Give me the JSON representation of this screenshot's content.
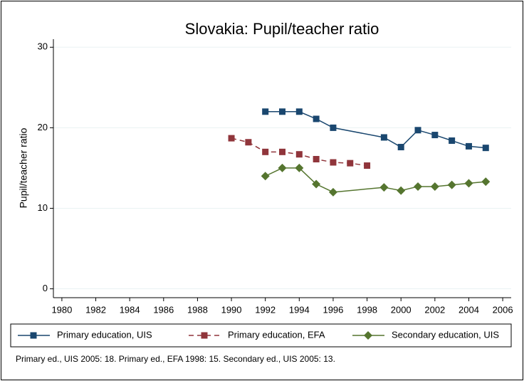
{
  "chart_data": {
    "type": "line",
    "title": "Slovakia: Pupil/teacher ratio",
    "y_label": "Pupil/teacher ratio",
    "note": "Primary ed., UIS 2005: 18. Primary ed., EFA 1998: 15. Secondary ed., UIS 2005: 13.",
    "xlim": [
      1979.5,
      2006.5
    ],
    "xticks": [
      1980,
      1982,
      1984,
      1986,
      1988,
      1990,
      1992,
      1994,
      1996,
      1998,
      2000,
      2002,
      2004,
      2006
    ],
    "ylim": [
      -1.1,
      31
    ],
    "yticks": [
      0,
      10,
      20,
      30
    ],
    "grid": true,
    "legend": "bottom",
    "series": [
      {
        "name": "Primary education, UIS",
        "color": "#1a476f",
        "marker": "square",
        "dash": false,
        "x": [
          1992,
          1993,
          1994,
          1995,
          1996,
          1999,
          2000,
          2001,
          2002,
          2003,
          2004,
          2005
        ],
        "values": [
          22,
          22,
          22,
          21.1,
          20,
          18.8,
          17.6,
          19.7,
          19.1,
          18.4,
          17.7,
          17.5
        ]
      },
      {
        "name": "Primary education, EFA",
        "color": "#90353b",
        "marker": "square",
        "dash": true,
        "x": [
          1990,
          1991,
          1992,
          1993,
          1994,
          1995,
          1996,
          1997,
          1998
        ],
        "values": [
          18.7,
          18.2,
          17,
          17,
          16.7,
          16.1,
          15.7,
          15.6,
          15.3
        ]
      },
      {
        "name": "Secondary education, UIS",
        "color": "#55752f",
        "marker": "diamond",
        "dash": false,
        "x": [
          1992,
          1993,
          1994,
          1995,
          1996,
          1999,
          2000,
          2001,
          2002,
          2003,
          2004,
          2005
        ],
        "values": [
          14,
          15,
          15,
          13,
          12,
          12.6,
          12.2,
          12.7,
          12.7,
          12.9,
          13.1,
          13.3
        ]
      }
    ]
  }
}
